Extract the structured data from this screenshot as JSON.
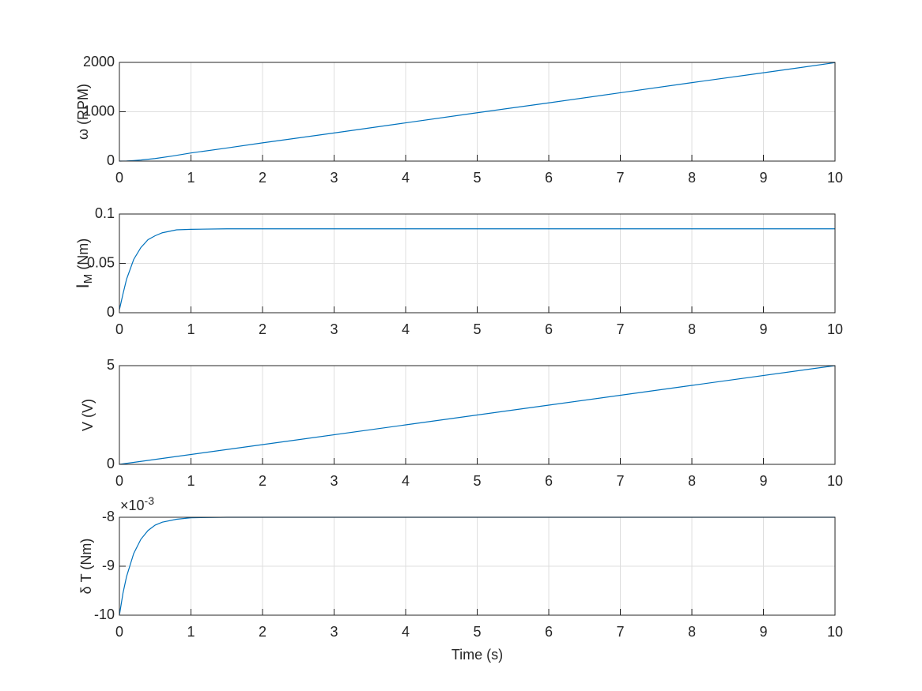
{
  "chart_data": [
    {
      "type": "line",
      "ylabel": "ω (RPM)",
      "color": "#0072bd",
      "grid": true,
      "xlim": [
        0,
        10
      ],
      "xticks": [
        0,
        1,
        2,
        3,
        4,
        5,
        6,
        7,
        8,
        9,
        10
      ],
      "ylim": [
        0,
        2000
      ],
      "yticks": [
        0,
        1000,
        2000
      ],
      "x": [
        0,
        0.1,
        0.2,
        0.3,
        0.5,
        0.75,
        1,
        1.5,
        2,
        3,
        4,
        5,
        6,
        7,
        8,
        9,
        10
      ],
      "values": [
        0,
        3,
        11,
        22,
        52,
        105,
        165,
        265,
        370,
        570,
        775,
        980,
        1180,
        1385,
        1590,
        1790,
        1995
      ]
    },
    {
      "type": "line",
      "ylabel": {
        "main": "I",
        "sub": "M",
        "rest": " (Nm)"
      },
      "color": "#0072bd",
      "grid": true,
      "xlim": [
        0,
        10
      ],
      "xticks": [
        0,
        1,
        2,
        3,
        4,
        5,
        6,
        7,
        8,
        9,
        10
      ],
      "ylim": [
        0,
        0.1
      ],
      "yticks": [
        0,
        0.05,
        0.1
      ],
      "x": [
        0,
        0.05,
        0.1,
        0.2,
        0.3,
        0.4,
        0.5,
        0.6,
        0.8,
        1,
        1.5,
        2,
        10
      ],
      "values": [
        0.003,
        0.019,
        0.034,
        0.054,
        0.066,
        0.074,
        0.078,
        0.081,
        0.084,
        0.0845,
        0.085,
        0.085,
        0.085
      ]
    },
    {
      "type": "line",
      "ylabel": "V (V)",
      "color": "#0072bd",
      "grid": true,
      "xlim": [
        0,
        10
      ],
      "xticks": [
        0,
        1,
        2,
        3,
        4,
        5,
        6,
        7,
        8,
        9,
        10
      ],
      "ylim": [
        0,
        5
      ],
      "yticks": [
        0,
        5
      ],
      "x": [
        0,
        2,
        4,
        6,
        8,
        10
      ],
      "values": [
        0,
        1,
        2,
        3,
        4,
        5
      ]
    },
    {
      "type": "line",
      "ylabel": "δ T (Nm)",
      "xlabel": "Time (s)",
      "color": "#0072bd",
      "grid": true,
      "y_multiplier": {
        "base": "×10",
        "exponent": "-3"
      },
      "xlim": [
        0,
        10
      ],
      "xticks": [
        0,
        1,
        2,
        3,
        4,
        5,
        6,
        7,
        8,
        9,
        10
      ],
      "ylim": [
        -0.01,
        -0.008
      ],
      "yticks": [
        {
          "value": -0.01,
          "label": "-10"
        },
        {
          "value": -0.009,
          "label": "-9"
        },
        {
          "value": -0.008,
          "label": "-8"
        }
      ],
      "x": [
        0,
        0.05,
        0.1,
        0.2,
        0.3,
        0.4,
        0.5,
        0.6,
        0.8,
        1,
        1.5,
        10
      ],
      "values": [
        -0.01,
        -0.00955,
        -0.00921,
        -0.00874,
        -0.00845,
        -0.00827,
        -0.00816,
        -0.0081,
        -0.00804,
        -0.00801,
        -0.008,
        -0.008
      ]
    }
  ]
}
